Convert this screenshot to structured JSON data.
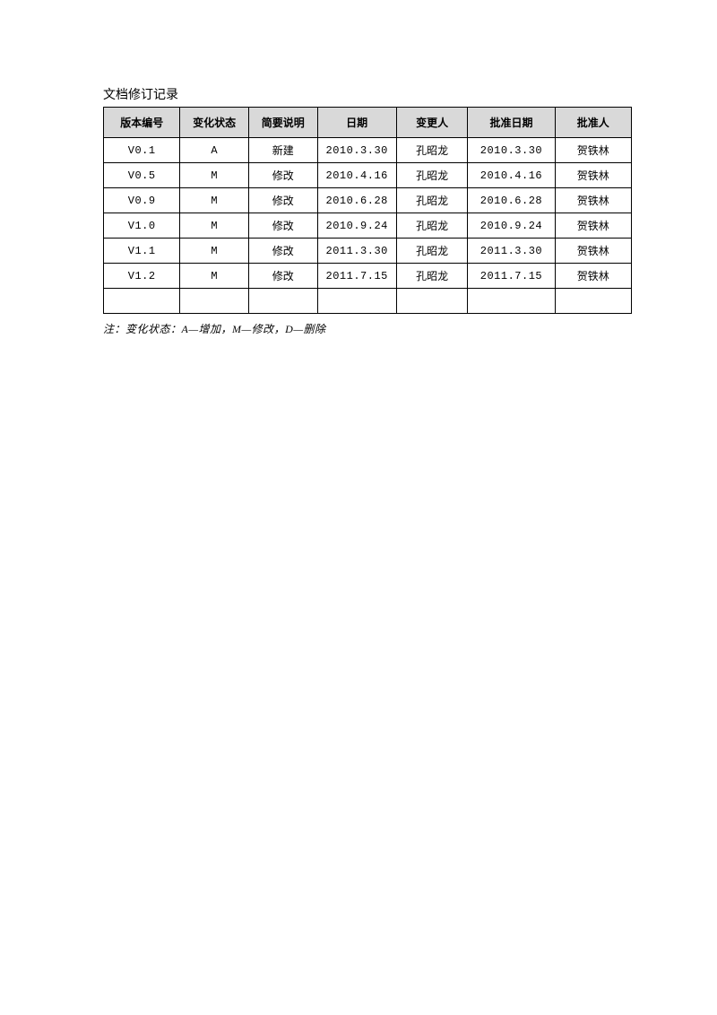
{
  "title": "文档修订记录",
  "table": {
    "columns": [
      "版本编号",
      "变化状态",
      "简要说明",
      "日期",
      "变更人",
      "批准日期",
      "批准人"
    ],
    "rows": [
      [
        "V0.1",
        "A",
        "新建",
        "2010.3.30",
        "孔昭龙",
        "2010.3.30",
        "贺铁林"
      ],
      [
        "V0.5",
        "M",
        "修改",
        "2010.4.16",
        "孔昭龙",
        "2010.4.16",
        "贺铁林"
      ],
      [
        "V0.9",
        "M",
        "修改",
        "2010.6.28",
        "孔昭龙",
        "2010.6.28",
        "贺铁林"
      ],
      [
        "V1.0",
        "M",
        "修改",
        "2010.9.24",
        "孔昭龙",
        "2010.9.24",
        "贺铁林"
      ],
      [
        "V1.1",
        "M",
        "修改",
        "2011.3.30",
        "孔昭龙",
        "2011.3.30",
        "贺铁林"
      ],
      [
        "V1.2",
        "M",
        "修改",
        "2011.7.15",
        "孔昭龙",
        "2011.7.15",
        "贺铁林"
      ],
      [
        "",
        "",
        "",
        "",
        "",
        "",
        ""
      ]
    ],
    "cjk_columns": [
      2,
      4,
      6
    ]
  },
  "note": "注：变化状态：A—增加，M—修改，D—删除"
}
